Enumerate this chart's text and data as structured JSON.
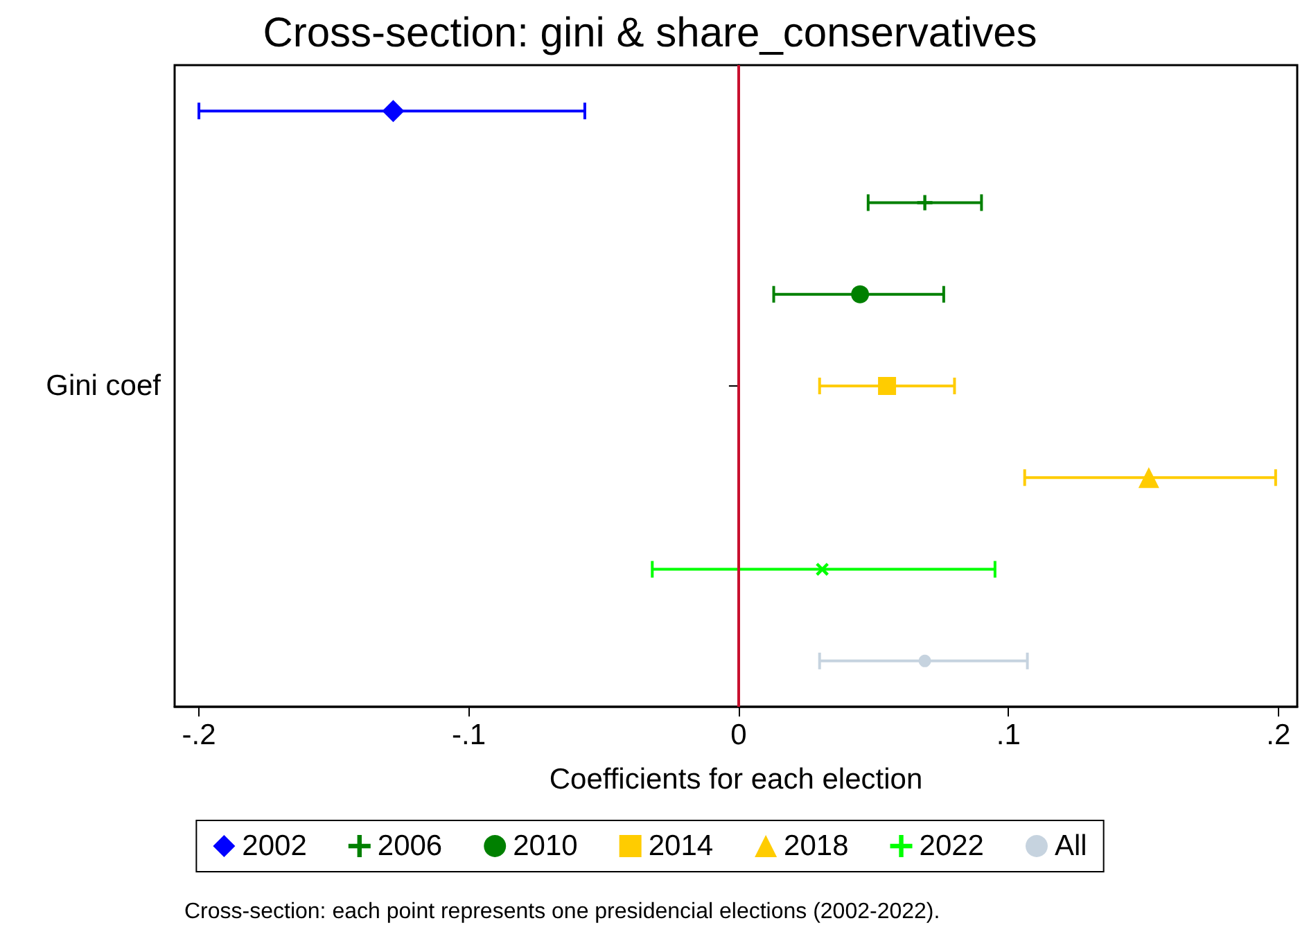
{
  "chart_data": {
    "type": "scatter",
    "orientation": "horizontal",
    "title": "Cross-section: gini & share_conservatives",
    "xlabel": "Coefficients for each election",
    "categories": [
      null,
      null,
      null,
      "Gini coef",
      null,
      null,
      null
    ],
    "xlim": [
      -0.209,
      0.207
    ],
    "xticks": [
      {
        "value": -0.2,
        "label": "-.2"
      },
      {
        "value": -0.1,
        "label": "-.1"
      },
      {
        "value": 0,
        "label": "0"
      },
      {
        "value": 0.1,
        "label": ".1"
      },
      {
        "value": 0.2,
        "label": ".2"
      }
    ],
    "grid": false,
    "legend": "bottom",
    "ref_lines": [
      {
        "axis": "x",
        "value": 0,
        "color": "#c8102e",
        "line_style": "solid"
      }
    ],
    "annotations": [
      "Cross-section: each point represents one presidencial elections (2002-2022)."
    ],
    "series": [
      {
        "name": "2002",
        "color": "#0000ff",
        "marker": "diamond",
        "values": [
          -0.128,
          null,
          null,
          null,
          null,
          null,
          null
        ],
        "errors": [
          [
            -0.2,
            -0.057
          ],
          null,
          null,
          null,
          null,
          null,
          null
        ]
      },
      {
        "name": "2006",
        "color": "#008000",
        "marker": "plus",
        "values": [
          null,
          0.069,
          null,
          null,
          null,
          null,
          null
        ],
        "errors": [
          null,
          [
            0.048,
            0.09
          ],
          null,
          null,
          null,
          null,
          null
        ]
      },
      {
        "name": "2010",
        "color": "#008000",
        "marker": "circle",
        "values": [
          null,
          null,
          0.045,
          null,
          null,
          null,
          null
        ],
        "errors": [
          null,
          null,
          [
            0.013,
            0.076
          ],
          null,
          null,
          null,
          null
        ]
      },
      {
        "name": "2014",
        "color": "#ffcc00",
        "marker": "square",
        "values": [
          null,
          null,
          null,
          0.055,
          null,
          null,
          null
        ],
        "errors": [
          null,
          null,
          null,
          [
            0.03,
            0.08
          ],
          null,
          null,
          null
        ]
      },
      {
        "name": "2018",
        "color": "#ffcc00",
        "marker": "triangle",
        "values": [
          null,
          null,
          null,
          null,
          0.152,
          null,
          null
        ],
        "errors": [
          null,
          null,
          null,
          null,
          [
            0.106,
            0.199
          ],
          null,
          null
        ]
      },
      {
        "name": "2022",
        "color": "#00ff00",
        "marker": "cross",
        "values": [
          null,
          null,
          null,
          null,
          null,
          0.031,
          null
        ],
        "errors": [
          null,
          null,
          null,
          null,
          null,
          [
            -0.032,
            0.095
          ],
          null
        ]
      },
      {
        "name": "All",
        "color": "#c6d3df",
        "marker": "circle",
        "values": [
          null,
          null,
          null,
          null,
          null,
          null,
          0.069
        ],
        "errors": [
          null,
          null,
          null,
          null,
          null,
          null,
          [
            0.03,
            0.107
          ]
        ]
      }
    ]
  }
}
